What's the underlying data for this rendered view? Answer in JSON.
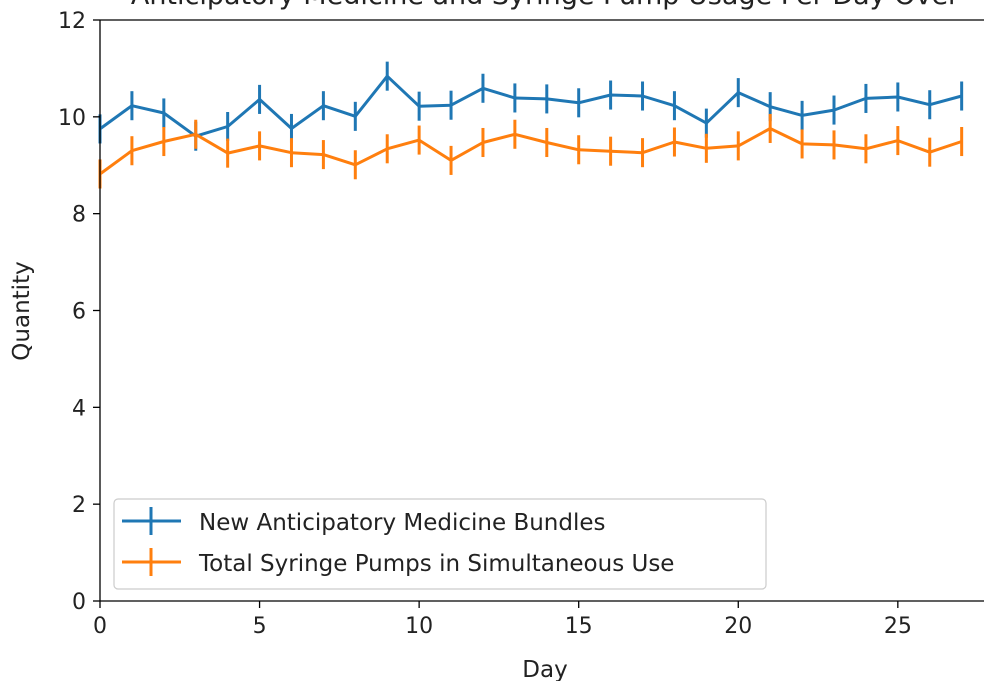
{
  "chart_data": {
    "type": "line",
    "title": "Anticipatory Medicine and Syringe Pump Usage Per Day Over",
    "xlabel": "Day",
    "ylabel": "Quantity",
    "xlim": [
      0,
      27.7
    ],
    "ylim": [
      0,
      12
    ],
    "x_ticks": [
      "0",
      "5",
      "10",
      "15",
      "20",
      "25"
    ],
    "y_ticks": [
      "0",
      "2",
      "4",
      "6",
      "8",
      "10",
      "12"
    ],
    "grid": false,
    "legend_position": "lower-left",
    "x": [
      0,
      1,
      2,
      3,
      4,
      5,
      6,
      7,
      8,
      9,
      10,
      11,
      12,
      13,
      14,
      15,
      16,
      17,
      18,
      19,
      20,
      21,
      22,
      23,
      24,
      25,
      26,
      27
    ],
    "series": [
      {
        "name": "New Anticipatory Medicine Bundles",
        "color": "#1f77b4",
        "values": [
          9.75,
          10.23,
          10.08,
          9.6,
          9.8,
          10.36,
          9.76,
          10.23,
          10.01,
          10.84,
          10.22,
          10.24,
          10.59,
          10.39,
          10.37,
          10.29,
          10.45,
          10.43,
          10.23,
          9.87,
          10.5,
          10.21,
          10.03,
          10.14,
          10.38,
          10.41,
          10.25,
          10.43
        ],
        "error": 0.3
      },
      {
        "name": "Total Syringe Pumps in Simultaneous Use",
        "color": "#ff7f0e",
        "values": [
          8.82,
          9.3,
          9.49,
          9.64,
          9.25,
          9.4,
          9.26,
          9.22,
          9.01,
          9.34,
          9.52,
          9.1,
          9.47,
          9.64,
          9.47,
          9.32,
          9.29,
          9.26,
          9.48,
          9.35,
          9.4,
          9.76,
          9.44,
          9.42,
          9.34,
          9.51,
          9.27,
          9.49
        ],
        "error": 0.3
      }
    ]
  }
}
